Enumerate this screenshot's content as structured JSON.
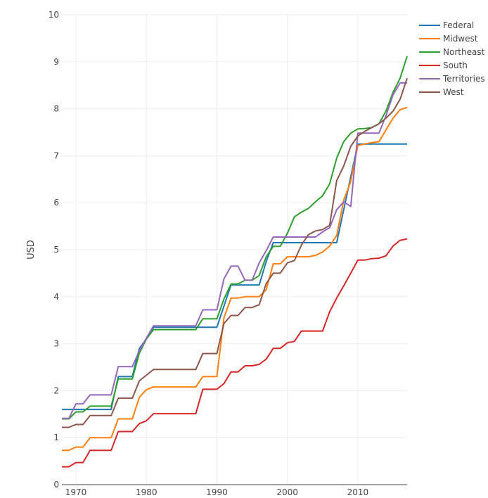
{
  "chart_data": {
    "type": "line",
    "title": "",
    "xlabel": "",
    "ylabel": "USD",
    "xlim": [
      1968,
      2017
    ],
    "ylim": [
      0,
      10
    ],
    "grid": true,
    "legend_position": "top-right",
    "x_ticks": [
      1970,
      1980,
      1990,
      2000,
      2010
    ],
    "y_ticks": [
      0,
      1,
      2,
      3,
      4,
      5,
      6,
      7,
      8,
      9,
      10
    ],
    "x": [
      1968,
      1969,
      1970,
      1971,
      1972,
      1973,
      1974,
      1975,
      1976,
      1977,
      1978,
      1979,
      1980,
      1981,
      1982,
      1983,
      1984,
      1985,
      1986,
      1987,
      1988,
      1989,
      1990,
      1991,
      1992,
      1993,
      1994,
      1995,
      1996,
      1997,
      1998,
      1999,
      2000,
      2001,
      2002,
      2003,
      2004,
      2005,
      2006,
      2007,
      2008,
      2009,
      2010,
      2011,
      2012,
      2013,
      2014,
      2015,
      2016,
      2017
    ],
    "series": [
      {
        "name": "Federal",
        "color": "#1f77b4",
        "values": [
          1.6,
          1.6,
          1.6,
          1.6,
          1.6,
          1.6,
          1.6,
          1.6,
          2.3,
          2.3,
          2.3,
          2.9,
          3.1,
          3.35,
          3.35,
          3.35,
          3.35,
          3.35,
          3.35,
          3.35,
          3.35,
          3.35,
          3.35,
          3.8,
          4.25,
          4.25,
          4.25,
          4.25,
          4.25,
          4.75,
          5.15,
          5.15,
          5.15,
          5.15,
          5.15,
          5.15,
          5.15,
          5.15,
          5.15,
          5.15,
          5.85,
          6.55,
          7.25,
          7.25,
          7.25,
          7.25,
          7.25,
          7.25,
          7.25,
          7.25
        ]
      },
      {
        "name": "Midwest",
        "color": "#ff7f0e",
        "values": [
          0.73,
          0.73,
          0.8,
          0.8,
          1.0,
          1.0,
          1.0,
          1.0,
          1.4,
          1.4,
          1.4,
          1.86,
          2.02,
          2.08,
          2.08,
          2.08,
          2.08,
          2.08,
          2.08,
          2.08,
          2.3,
          2.3,
          2.3,
          3.55,
          3.97,
          3.97,
          4.0,
          4.0,
          4.0,
          4.15,
          4.7,
          4.7,
          4.85,
          4.85,
          4.85,
          4.85,
          4.88,
          4.95,
          5.08,
          5.3,
          6.05,
          6.45,
          7.22,
          7.25,
          7.28,
          7.3,
          7.55,
          7.8,
          7.98,
          8.03
        ]
      },
      {
        "name": "Northeast",
        "color": "#2ca02c",
        "values": [
          1.4,
          1.4,
          1.55,
          1.55,
          1.67,
          1.67,
          1.67,
          1.67,
          2.25,
          2.25,
          2.25,
          2.8,
          3.1,
          3.3,
          3.3,
          3.3,
          3.3,
          3.3,
          3.3,
          3.3,
          3.53,
          3.53,
          3.53,
          3.95,
          4.27,
          4.27,
          4.35,
          4.35,
          4.45,
          4.85,
          5.07,
          5.07,
          5.35,
          5.7,
          5.8,
          5.88,
          6.02,
          6.15,
          6.4,
          6.95,
          7.3,
          7.48,
          7.57,
          7.58,
          7.6,
          7.68,
          7.95,
          8.35,
          8.65,
          9.12
        ]
      },
      {
        "name": "South",
        "color": "#d62728",
        "values": [
          0.38,
          0.38,
          0.47,
          0.47,
          0.73,
          0.73,
          0.73,
          0.73,
          1.13,
          1.13,
          1.13,
          1.3,
          1.36,
          1.51,
          1.51,
          1.51,
          1.51,
          1.51,
          1.51,
          1.51,
          2.03,
          2.03,
          2.03,
          2.15,
          2.4,
          2.4,
          2.53,
          2.53,
          2.56,
          2.67,
          2.9,
          2.9,
          3.02,
          3.05,
          3.27,
          3.27,
          3.27,
          3.27,
          3.68,
          3.97,
          4.23,
          4.5,
          4.78,
          4.78,
          4.81,
          4.82,
          4.87,
          5.08,
          5.2,
          5.23
        ]
      },
      {
        "name": "Territories",
        "color": "#9467bd",
        "values": [
          1.41,
          1.41,
          1.72,
          1.72,
          1.91,
          1.91,
          1.91,
          1.91,
          2.51,
          2.51,
          2.51,
          2.85,
          3.12,
          3.38,
          3.38,
          3.38,
          3.38,
          3.38,
          3.38,
          3.38,
          3.72,
          3.72,
          3.72,
          4.38,
          4.65,
          4.65,
          4.35,
          4.35,
          4.72,
          4.98,
          5.27,
          5.27,
          5.27,
          5.27,
          5.27,
          5.27,
          5.27,
          5.38,
          5.47,
          5.85,
          6.02,
          5.92,
          7.48,
          7.48,
          7.48,
          7.48,
          7.85,
          8.3,
          8.55,
          8.55
        ]
      },
      {
        "name": "West",
        "color": "#8c564b",
        "values": [
          1.22,
          1.22,
          1.28,
          1.28,
          1.47,
          1.47,
          1.47,
          1.47,
          1.84,
          1.84,
          1.84,
          2.21,
          2.33,
          2.45,
          2.45,
          2.45,
          2.45,
          2.45,
          2.45,
          2.45,
          2.79,
          2.79,
          2.79,
          3.43,
          3.6,
          3.6,
          3.77,
          3.77,
          3.83,
          4.28,
          4.5,
          4.5,
          4.72,
          4.77,
          5.1,
          5.32,
          5.4,
          5.43,
          5.52,
          6.47,
          6.78,
          7.2,
          7.42,
          7.52,
          7.6,
          7.68,
          7.8,
          7.95,
          8.2,
          8.65
        ]
      }
    ]
  }
}
